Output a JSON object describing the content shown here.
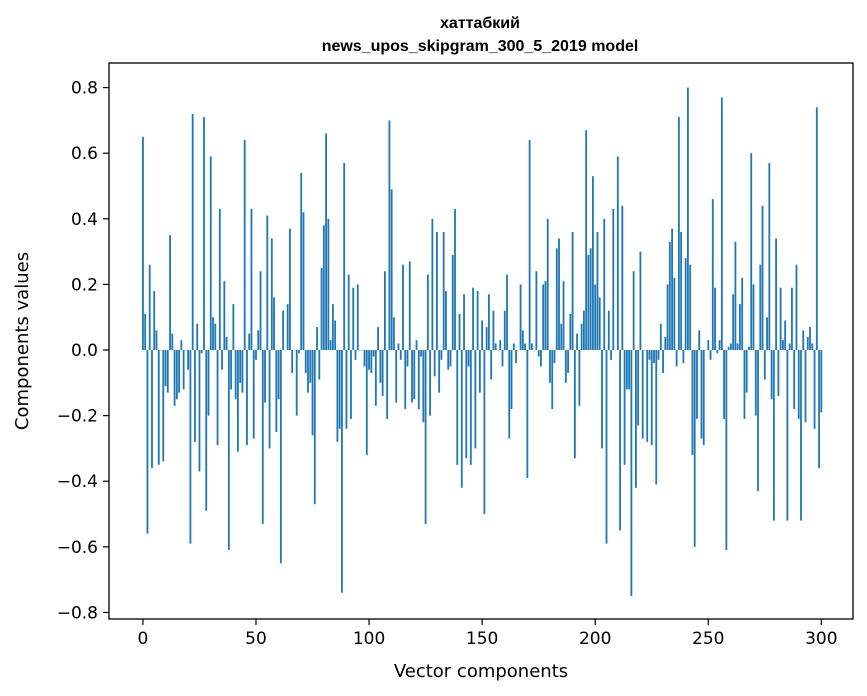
{
  "chart_data": {
    "type": "bar",
    "title_line1": "хаттабкий",
    "title_line2": "news_upos_skipgram_300_5_2019 model",
    "xlabel": "Vector components",
    "ylabel": "Components values",
    "xlim": [
      -15,
      314
    ],
    "ylim": [
      -0.82,
      0.875
    ],
    "xticks": [
      0,
      50,
      100,
      150,
      200,
      250,
      300
    ],
    "xtick_labels": [
      "0",
      "50",
      "100",
      "150",
      "200",
      "250",
      "300"
    ],
    "yticks": [
      -0.8,
      -0.6,
      -0.4,
      -0.2,
      0.0,
      0.2,
      0.4,
      0.6,
      0.8
    ],
    "ytick_labels": [
      "−0.8",
      "−0.6",
      "−0.4",
      "−0.2",
      "0.0",
      "0.2",
      "0.4",
      "0.6",
      "0.8"
    ],
    "bar_color": "#1f77b4",
    "bar_width": 0.8,
    "values": [
      0.65,
      0.11,
      -0.56,
      0.26,
      -0.36,
      0.18,
      0.06,
      -0.35,
      0.0,
      -0.34,
      -0.11,
      -0.13,
      0.35,
      0.05,
      -0.17,
      -0.15,
      -0.13,
      0.03,
      -0.12,
      0.0,
      -0.06,
      -0.59,
      0.72,
      -0.28,
      0.08,
      -0.37,
      -0.01,
      0.71,
      -0.49,
      -0.2,
      0.59,
      0.1,
      0.08,
      -0.29,
      0.43,
      -0.06,
      0.21,
      0.04,
      -0.61,
      -0.12,
      0.14,
      -0.15,
      -0.31,
      -0.1,
      -0.13,
      0.64,
      -0.29,
      0.05,
      0.43,
      -0.27,
      -0.03,
      0.06,
      0.24,
      -0.53,
      -0.16,
      0.41,
      -0.3,
      0.34,
      0.16,
      -0.25,
      -0.15,
      -0.65,
      0.12,
      0.0,
      0.14,
      0.37,
      -0.07,
      0.0,
      -0.2,
      -0.01,
      0.54,
      0.42,
      -0.07,
      -0.13,
      -0.1,
      -0.26,
      -0.47,
      0.07,
      -0.09,
      0.25,
      0.38,
      0.66,
      0.4,
      0.03,
      0.14,
      0.09,
      -0.28,
      -0.24,
      -0.74,
      0.57,
      -0.24,
      0.23,
      -0.21,
      0.19,
      -0.03,
      0.2,
      0.0,
      0.0,
      -0.05,
      -0.32,
      -0.06,
      -0.07,
      -0.02,
      -0.17,
      0.07,
      -0.1,
      -0.14,
      0.24,
      -0.21,
      0.7,
      0.49,
      0.1,
      -0.16,
      0.02,
      -0.03,
      0.26,
      -0.18,
      -0.05,
      0.27,
      -0.16,
      -0.15,
      0.03,
      -0.18,
      -0.02,
      -0.22,
      -0.53,
      0.23,
      -0.2,
      0.4,
      -0.08,
      0.36,
      -0.13,
      -0.03,
      0.36,
      0.18,
      -0.06,
      -0.05,
      0.29,
      0.43,
      -0.35,
      0.11,
      -0.42,
      0.17,
      -0.33,
      -0.05,
      -0.35,
      0.19,
      -0.3,
      0.18,
      -0.13,
      0.09,
      -0.5,
      0.07,
      0.17,
      -0.09,
      0.12,
      0.02,
      0.0,
      0.03,
      -0.05,
      0.12,
      0.23,
      -0.27,
      -0.18,
      0.02,
      -0.04,
      0.0,
      0.2,
      0.06,
      0.02,
      -0.39,
      0.64,
      0.02,
      0.0,
      0.24,
      -0.02,
      -0.05,
      0.2,
      0.21,
      0.4,
      -0.1,
      -0.18,
      -0.04,
      0.31,
      0.34,
      0.08,
      0.21,
      -0.1,
      -0.07,
      0.11,
      0.36,
      -0.33,
      0.05,
      -0.17,
      0.08,
      0.12,
      0.67,
      0.29,
      0.31,
      0.53,
      0.2,
      0.36,
      0.16,
      -0.3,
      0.4,
      -0.59,
      0.12,
      -0.03,
      0.43,
      0.0,
      0.59,
      -0.55,
      0.44,
      -0.35,
      -0.12,
      -0.12,
      -0.75,
      0.24,
      -0.42,
      -0.23,
      0.3,
      -0.27,
      0.0,
      -0.28,
      -0.03,
      -0.29,
      -0.04,
      -0.41,
      -0.03,
      0.08,
      -0.07,
      0.04,
      0.2,
      0.33,
      0.37,
      0.22,
      -0.05,
      0.71,
      0.36,
      -0.04,
      0.28,
      0.8,
      0.26,
      -0.32,
      -0.6,
      -0.21,
      0.06,
      -0.27,
      -0.29,
      0.0,
      0.03,
      -0.03,
      0.46,
      0.19,
      -0.01,
      0.03,
      0.77,
      -0.21,
      -0.61,
      0.01,
      0.02,
      0.17,
      0.33,
      0.02,
      0.14,
      0.22,
      -0.21,
      -0.13,
      0.01,
      0.6,
      0.2,
      -0.2,
      -0.43,
      0.26,
      0.44,
      -0.09,
      0.1,
      0.57,
      -0.15,
      -0.52,
      0.34,
      -0.14,
      0.19,
      0.03,
      0.09,
      -0.52,
      0.02,
      0.19,
      -0.18,
      0.26,
      -0.21,
      -0.52,
      0.06,
      -0.22,
      0.04,
      0.07,
      0.02,
      -0.24,
      0.74,
      -0.36,
      -0.19
    ]
  }
}
